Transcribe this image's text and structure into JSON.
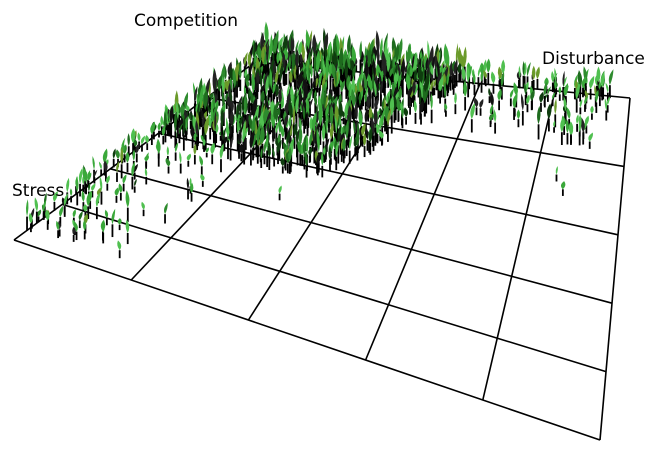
{
  "labels": {
    "competition": "Competition",
    "disturbance": "Disturbance",
    "stress": "Stress"
  },
  "grid": {
    "divisions": 5,
    "line_color": "#000000"
  },
  "plants": {
    "colors": [
      "#3aa83a",
      "#2e8b2e",
      "#1e6b1e",
      "#0f3d0f",
      "#111111",
      "#222222",
      "#50c050",
      "#6a9a2a"
    ],
    "stem_color": "#000000",
    "highlight_color": "#9a7a2a"
  }
}
